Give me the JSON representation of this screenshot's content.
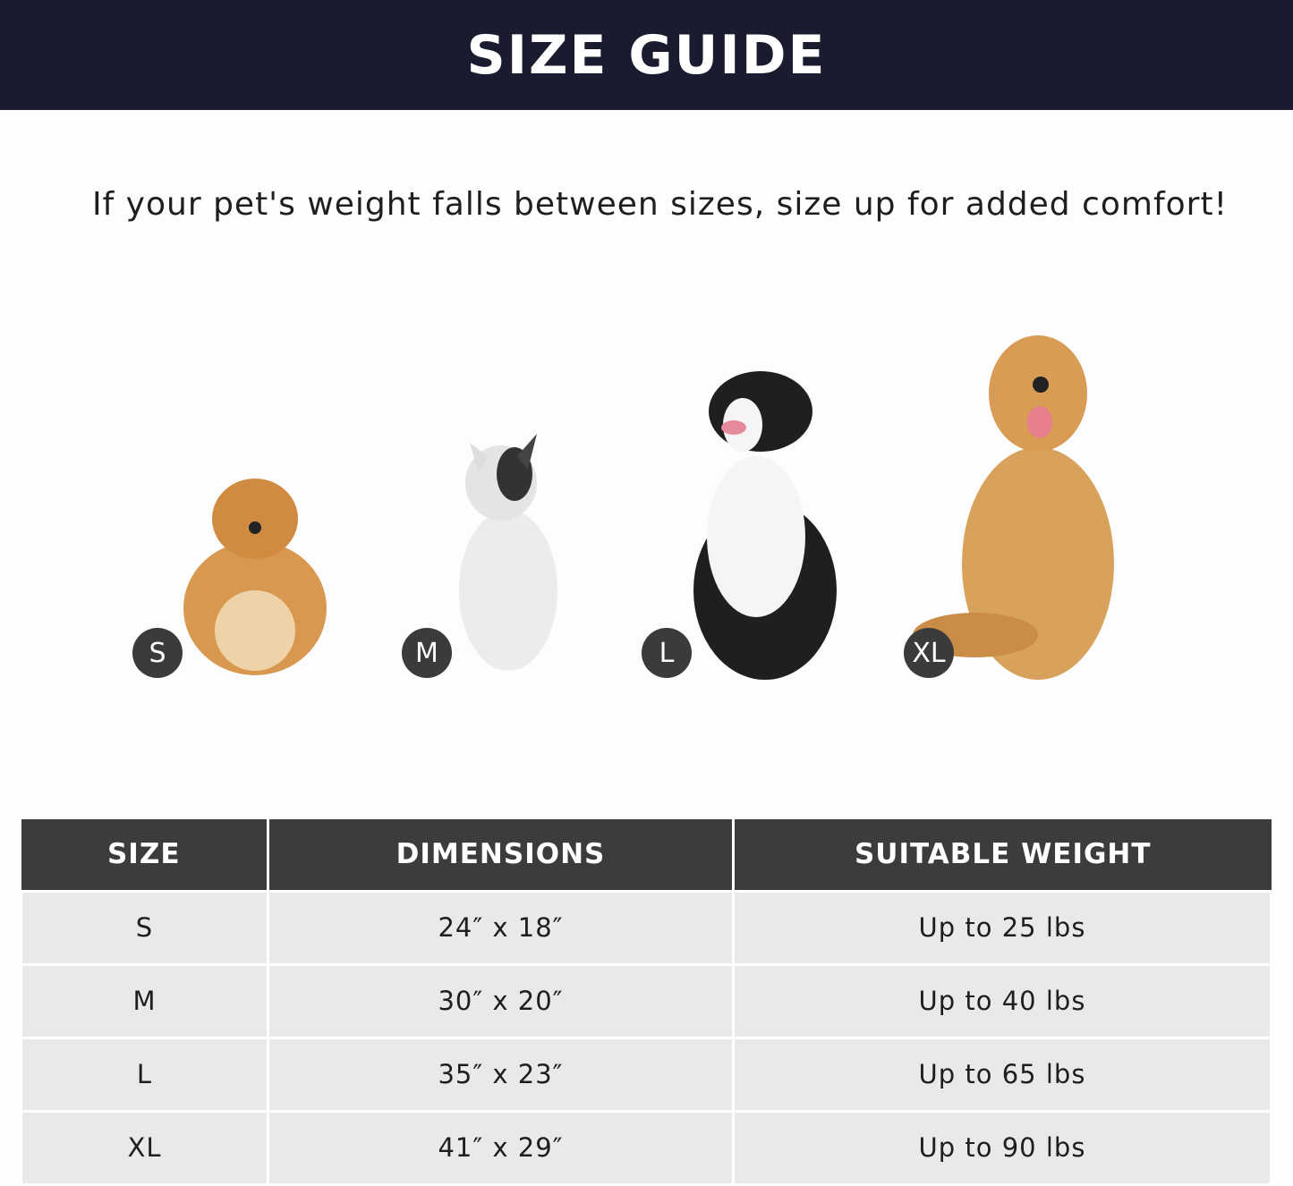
{
  "header": {
    "title": "SIZE GUIDE",
    "background": "#1b1b2f"
  },
  "subtitle": "If your pet's weight falls between sizes, size up for added comfort!",
  "dogs": [
    {
      "badge": "S",
      "breed_icon": "pomeranian-image",
      "color": "#d9984f"
    },
    {
      "badge": "M",
      "breed_icon": "french-bulldog-image",
      "color": "#ececec"
    },
    {
      "badge": "L",
      "breed_icon": "border-collie-image",
      "color": "#222222"
    },
    {
      "badge": "XL",
      "breed_icon": "golden-retriever-image",
      "color": "#d9a25c"
    }
  ],
  "table": {
    "headers": [
      "SIZE",
      "DIMENSIONS",
      "SUITABLE WEIGHT"
    ],
    "rows": [
      [
        "S",
        "24″ x 18″",
        "Up to 25 lbs"
      ],
      [
        "M",
        "30″ x 20″",
        "Up to 40 lbs"
      ],
      [
        "L",
        "35″ x 23″",
        "Up to 65 lbs"
      ],
      [
        "XL",
        "41″ x 29″",
        "Up to 90 lbs"
      ]
    ],
    "header_color": "#3c3b3e",
    "row_color": "#e9e9e9"
  }
}
